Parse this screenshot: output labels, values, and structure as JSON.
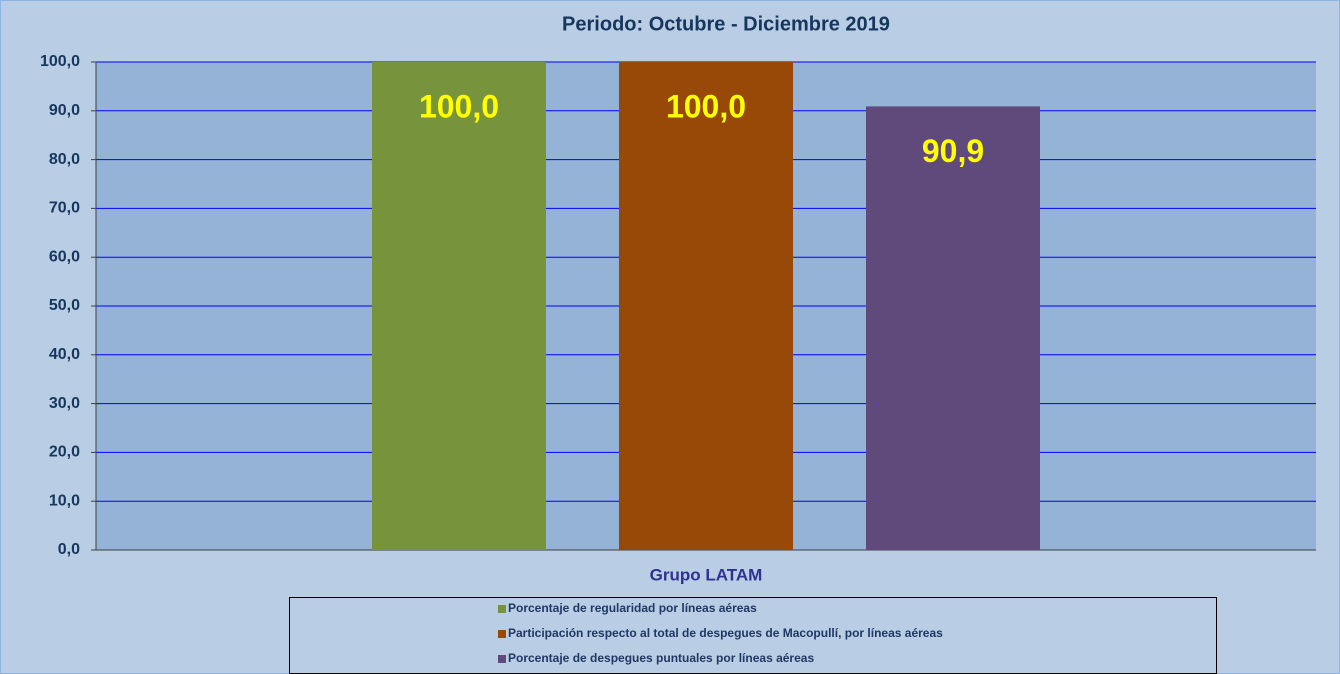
{
  "chart_data": {
    "type": "bar",
    "title": "Periodo: Octubre -  Diciembre  2019",
    "categories": [
      "Grupo LATAM"
    ],
    "series": [
      {
        "name": "Porcentaje de regularidad por líneas aéreas",
        "color": "#77933c",
        "values": [
          100.0
        ],
        "value_labels": [
          "100,0"
        ]
      },
      {
        "name": "Participación respecto al total de despegues de Macopullí, por líneas aéreas",
        "color": "#984807",
        "values": [
          100.0
        ],
        "value_labels": [
          "100,0"
        ]
      },
      {
        "name": "Porcentaje de despegues puntuales por líneas aéreas",
        "color": "#604a7b",
        "values": [
          90.9
        ],
        "value_labels": [
          "90,9"
        ]
      }
    ],
    "ylim": [
      0,
      100
    ],
    "yticks": [
      {
        "value": 0,
        "label": "0,0"
      },
      {
        "value": 10,
        "label": "10,0"
      },
      {
        "value": 20,
        "label": "20,0"
      },
      {
        "value": 30,
        "label": "30,0"
      },
      {
        "value": 40,
        "label": "40,0"
      },
      {
        "value": 50,
        "label": "50,0"
      },
      {
        "value": 60,
        "label": "60,0"
      },
      {
        "value": 70,
        "label": "70,0"
      },
      {
        "value": 80,
        "label": "80,0"
      },
      {
        "value": 90,
        "label": "90,0"
      },
      {
        "value": 100,
        "label": "100,0"
      }
    ],
    "grid": true,
    "legend": "bottom"
  }
}
